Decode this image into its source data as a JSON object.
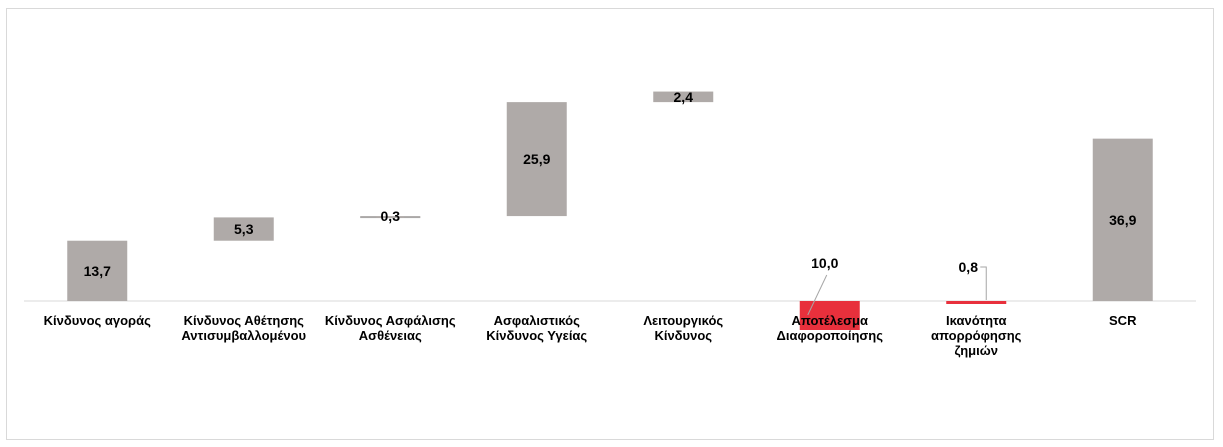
{
  "chart_data": {
    "type": "waterfall",
    "categories": [
      [
        "Κίνδυνος αγοράς"
      ],
      [
        "Κίνδυνος Αθέτησης",
        "Αντισυμβαλλομένου"
      ],
      [
        "Κίνδυνος Ασφάλισης",
        "Ασθένειας"
      ],
      [
        "Ασφαλιστικός",
        "Κίνδυνος Υγείας"
      ],
      [
        "Λειτουργικός",
        "Κίνδυνος"
      ],
      [
        "Αποτέλεσμα",
        "Διαφοροποίησης"
      ],
      [
        "Ικανότητα",
        "απορρόφησης",
        "ζημιών"
      ],
      [
        "SCR"
      ]
    ],
    "values": [
      13.7,
      5.3,
      0.3,
      25.9,
      2.4,
      -10.0,
      -0.8,
      36.9
    ],
    "labels": [
      "13,7",
      "5,3",
      "0,3",
      "25,9",
      "2,4",
      "10,0",
      "0,8",
      "36,9"
    ],
    "bar_types": [
      "increase",
      "increase",
      "increase",
      "increase",
      "increase",
      "decrease",
      "decrease",
      "total"
    ],
    "colors": {
      "increase": "#afaaa8",
      "decrease": "#e8303c",
      "total": "#afaaa8",
      "leader": "#a6a6a6",
      "axis": "#d9d9d9"
    },
    "title": "",
    "xlabel": "",
    "ylabel": "",
    "ylim": [
      -10,
      47.6
    ],
    "legend": "none",
    "grid": false
  }
}
